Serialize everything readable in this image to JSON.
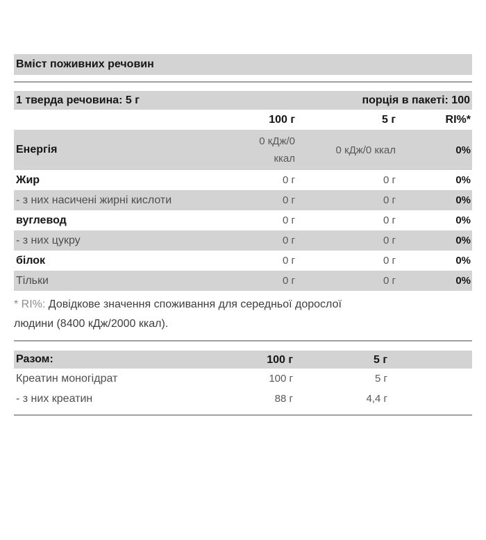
{
  "title": "Вміст поживних речовин",
  "serving_bar": {
    "serving_size": "1 тверда речовина: 5 г",
    "servings_per_pack": "порція в пакеті: 100"
  },
  "column_headers": {
    "per_100g": "100 г",
    "per_5g": "5 г",
    "ri": "RI%*"
  },
  "nutrients": [
    {
      "label": "Енергія",
      "per_100g": "0 кДж/0\nккал",
      "per_5g": "0 кДж/0 ккал",
      "ri": "0%"
    },
    {
      "label": "Жир",
      "per_100g": "0 г",
      "per_5g": "0 г",
      "ri": "0%"
    },
    {
      "label": "- з них насичені жирні кислоти",
      "per_100g": "0 г",
      "per_5g": "0 г",
      "ri": "0%"
    },
    {
      "label": "вуглевод",
      "per_100g": "0 г",
      "per_5g": "0 г",
      "ri": "0%"
    },
    {
      "label": "- з них цукру",
      "per_100g": "0 г",
      "per_5g": "0 г",
      "ri": "0%"
    },
    {
      "label": "білок",
      "per_100g": "0 г",
      "per_5g": "0 г",
      "ri": "0%"
    },
    {
      "label": "Тільки",
      "per_100g": "0 г",
      "per_5g": "0 г",
      "ri": "0%"
    }
  ],
  "footnote": {
    "marker": "* RI%: ",
    "text": "Довідкове значення споживання для середньої дорослої\nлюдини (8400 кДж/2000 ккал)."
  },
  "totals": {
    "header": {
      "label": "Разом:",
      "per_100g": "100 г",
      "per_5g": "5 г"
    },
    "rows": [
      {
        "label": "Креатин моногідрат",
        "per_100g": "100 г",
        "per_5g": "5 г"
      },
      {
        "label": "- з них креатин",
        "per_100g": "88 г",
        "per_5g": "4,4 г"
      }
    ]
  },
  "colors": {
    "bar_gray": "#d3d3d3",
    "rule_gray": "#a0a0a0",
    "text_dark": "#161616",
    "text_gray": "#4e4e4e"
  }
}
